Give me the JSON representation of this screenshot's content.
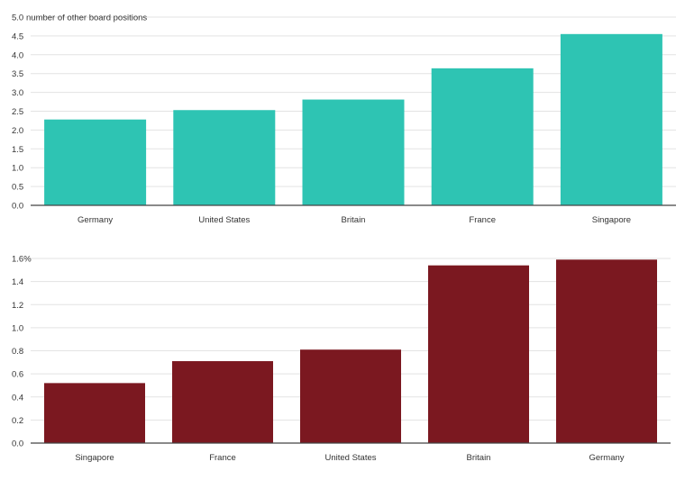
{
  "chart_data": [
    {
      "type": "bar",
      "categories": [
        "Germany",
        "United States",
        "Britain",
        "France",
        "Singapore"
      ],
      "values": [
        2.28,
        2.53,
        2.81,
        3.64,
        4.55
      ],
      "y_ticks": [
        "0.0",
        "0.5",
        "1.0",
        "1.5",
        "2.0",
        "2.5",
        "3.0",
        "3.5",
        "4.0",
        "4.5",
        "5.0"
      ],
      "unit_label": "number of other board positions",
      "ylim": [
        0,
        5
      ],
      "grid": true,
      "color": "#2ec4b3"
    },
    {
      "type": "bar",
      "categories": [
        "Singapore",
        "France",
        "United States",
        "Britain",
        "Germany"
      ],
      "values": [
        0.52,
        0.71,
        0.81,
        1.54,
        1.59
      ],
      "y_ticks": [
        "0.0",
        "0.2",
        "0.4",
        "0.6",
        "0.8",
        "1.0",
        "1.2",
        "1.4",
        "1.6%"
      ],
      "unit_label": "",
      "ylim": [
        0,
        1.6
      ],
      "grid": true,
      "color": "#7b1820"
    }
  ]
}
